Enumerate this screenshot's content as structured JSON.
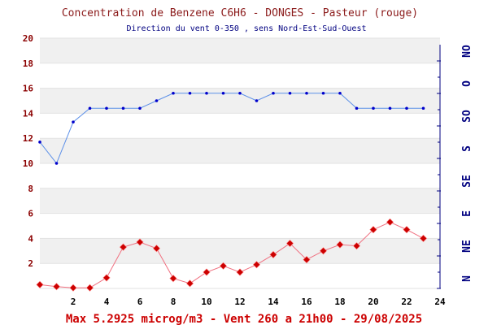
{
  "chart_data": {
    "type": "line",
    "title": "Concentration de Benzene C6H6  -   DONGES - Pasteur (rouge)",
    "subtitle": "Direction du vent 0-350 , sens Nord-Est-Sud-Ouest",
    "footer": "Max 5.2925 microg/m3 - Vent 260  a 21h00 - 29/08/2025",
    "xlim": [
      0,
      24
    ],
    "ylim": [
      0,
      20
    ],
    "x_ticks": [
      "2",
      "4",
      "6",
      "8",
      "10",
      "12",
      "14",
      "16",
      "18",
      "20",
      "22",
      "24"
    ],
    "y_ticks": [
      "2",
      "4",
      "6",
      "8",
      "10",
      "12",
      "14",
      "16",
      "18",
      "20"
    ],
    "grid": true,
    "x": [
      0,
      1,
      2,
      3,
      4,
      5,
      6,
      7,
      8,
      9,
      10,
      11,
      12,
      13,
      14,
      15,
      16,
      17,
      18,
      19,
      20,
      21,
      22,
      23
    ],
    "series": [
      {
        "role": "wind",
        "color": "#5b8fe8",
        "marker_color": "#0000cc",
        "values": [
          11.7,
          10.0,
          13.3,
          14.4,
          14.4,
          14.4,
          14.4,
          15.0,
          15.6,
          15.6,
          15.6,
          15.6,
          15.6,
          15.0,
          15.6,
          15.6,
          15.6,
          15.6,
          15.6,
          14.4,
          14.4,
          14.4,
          14.4,
          14.4
        ]
      },
      {
        "role": "benzene",
        "color": "#f07080",
        "marker_color": "#cc0000",
        "values": [
          0.3,
          0.15,
          0.05,
          0.05,
          0.85,
          3.3,
          3.7,
          3.2,
          0.8,
          0.4,
          1.3,
          1.8,
          1.3,
          1.9,
          2.7,
          3.6,
          2.3,
          3.0,
          3.5,
          3.4,
          4.7,
          5.3,
          4.7,
          4.0
        ]
      }
    ],
    "right_axis_labels": [
      "N",
      "NE",
      "E",
      "SE",
      "S",
      "SO",
      "O",
      "NO"
    ],
    "colors": {
      "title": "#8b1a1a",
      "subtitle": "#000080",
      "left_axis": "#8b0000",
      "right_axis": "#000080",
      "footer": "#cc0000",
      "band": "#f0f0f0"
    }
  }
}
